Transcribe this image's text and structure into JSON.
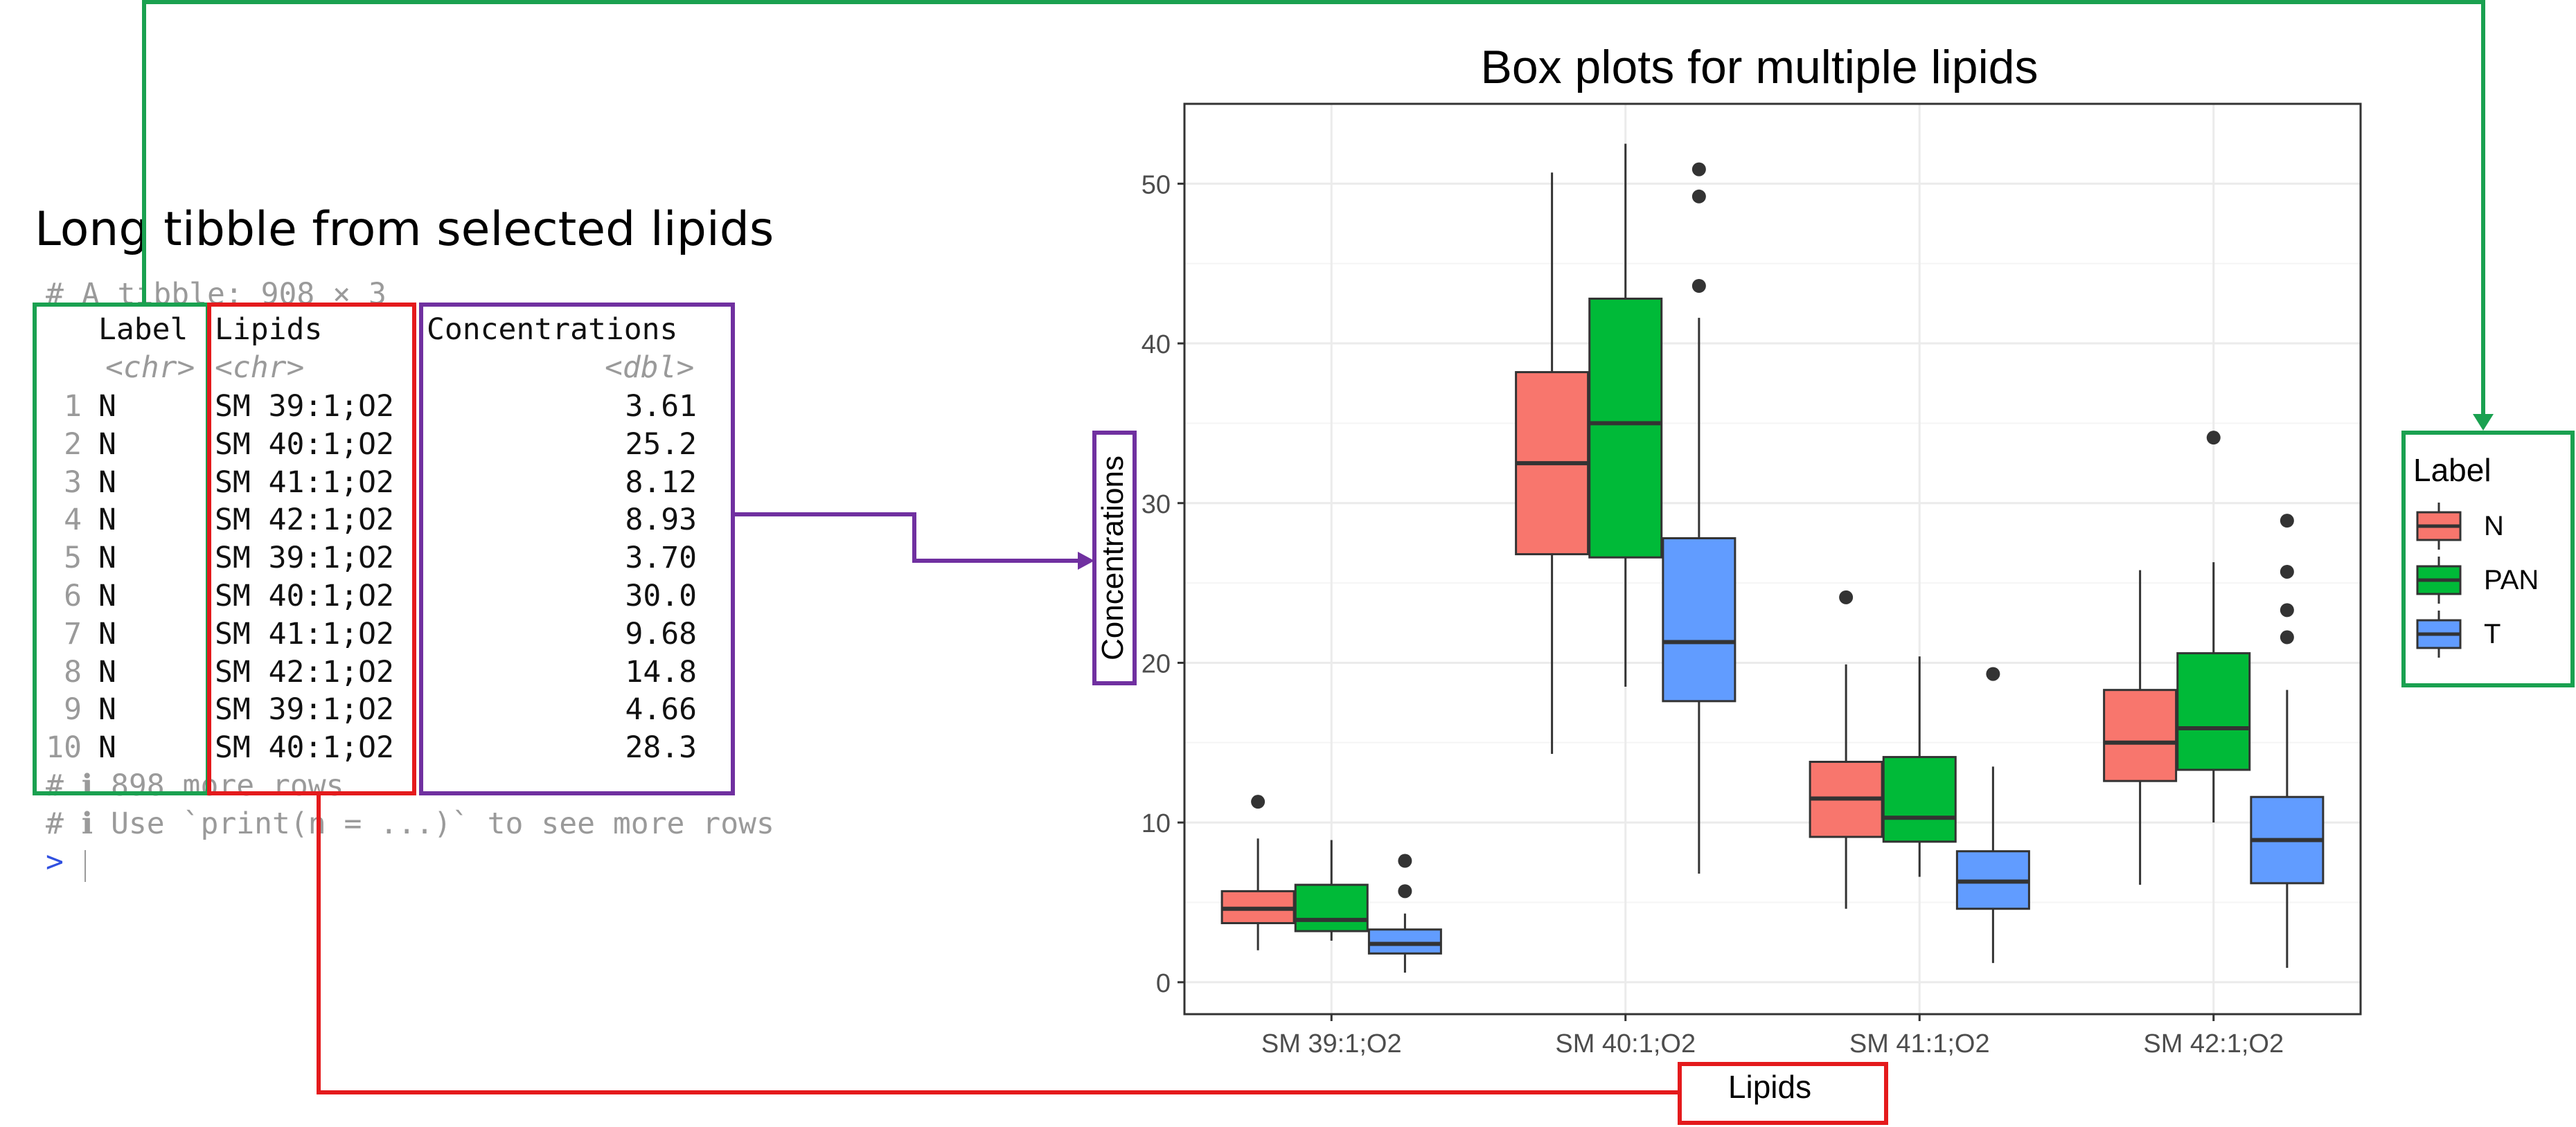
{
  "heading": "Long tibble from selected lipids",
  "console": {
    "header_comment": "# A tibble: 908 × 3",
    "columns": [
      "Label",
      "Lipids",
      "Concentrations"
    ],
    "types": [
      "<chr>",
      "<chr>",
      "<dbl>"
    ],
    "rows": [
      {
        "n": "1",
        "label": "N",
        "lipid": "SM 39:1;O2",
        "conc": "3.61"
      },
      {
        "n": "2",
        "label": "N",
        "lipid": "SM 40:1;O2",
        "conc": "25.2"
      },
      {
        "n": "3",
        "label": "N",
        "lipid": "SM 41:1;O2",
        "conc": "8.12"
      },
      {
        "n": "4",
        "label": "N",
        "lipid": "SM 42:1;O2",
        "conc": "8.93"
      },
      {
        "n": "5",
        "label": "N",
        "lipid": "SM 39:1;O2",
        "conc": "3.70"
      },
      {
        "n": "6",
        "label": "N",
        "lipid": "SM 40:1;O2",
        "conc": "30.0"
      },
      {
        "n": "7",
        "label": "N",
        "lipid": "SM 41:1;O2",
        "conc": "9.68"
      },
      {
        "n": "8",
        "label": "N",
        "lipid": "SM 42:1;O2",
        "conc": "14.8"
      },
      {
        "n": "9",
        "label": "N",
        "lipid": "SM 39:1;O2",
        "conc": "4.66"
      },
      {
        "n": "10",
        "label": "N",
        "lipid": "SM 40:1;O2",
        "conc": "28.3"
      }
    ],
    "footer_more_rows": "# ℹ 898 more rows",
    "footer_print_hint": "# ℹ Use `print(n = ...)` to see more rows",
    "prompt": ">"
  },
  "colors": {
    "N": "#F8766D",
    "PAN": "#00BA38",
    "T": "#619CFF",
    "label_highlight": "#1aa150",
    "lipids_highlight": "#e41a1c",
    "conc_highlight": "#7030a0"
  },
  "chart_data": {
    "type": "box",
    "title": "Box plots for multiple lipids",
    "xlabel": "Lipids",
    "ylabel": "Concentrations",
    "ylim": [
      -2,
      55
    ],
    "yticks": [
      0,
      10,
      20,
      30,
      40,
      50
    ],
    "grid": true,
    "legend": {
      "title": "Label",
      "placement": "right",
      "entries": [
        "N",
        "PAN",
        "T"
      ]
    },
    "categories": [
      "SM 39:1;O2",
      "SM 40:1;O2",
      "SM 41:1;O2",
      "SM 42:1;O2"
    ],
    "series": [
      {
        "name": "N",
        "boxes": [
          {
            "whisker_low": 2.0,
            "q1": 3.7,
            "median": 4.6,
            "q3": 5.7,
            "whisker_high": 9.0,
            "outliers": [
              11.3
            ]
          },
          {
            "whisker_low": 14.3,
            "q1": 26.8,
            "median": 32.5,
            "q3": 38.2,
            "whisker_high": 50.7,
            "outliers": []
          },
          {
            "whisker_low": 4.6,
            "q1": 9.1,
            "median": 11.5,
            "q3": 13.8,
            "whisker_high": 19.9,
            "outliers": [
              24.1
            ]
          },
          {
            "whisker_low": 6.1,
            "q1": 12.6,
            "median": 15.0,
            "q3": 18.3,
            "whisker_high": 25.8,
            "outliers": []
          }
        ]
      },
      {
        "name": "PAN",
        "boxes": [
          {
            "whisker_low": 2.6,
            "q1": 3.2,
            "median": 3.9,
            "q3": 6.1,
            "whisker_high": 8.9,
            "outliers": []
          },
          {
            "whisker_low": 18.5,
            "q1": 26.6,
            "median": 35.0,
            "q3": 42.8,
            "whisker_high": 52.5,
            "outliers": []
          },
          {
            "whisker_low": 6.6,
            "q1": 8.8,
            "median": 10.3,
            "q3": 14.1,
            "whisker_high": 20.4,
            "outliers": []
          },
          {
            "whisker_low": 10.0,
            "q1": 13.3,
            "median": 15.9,
            "q3": 20.6,
            "whisker_high": 26.3,
            "outliers": [
              34.1
            ]
          }
        ]
      },
      {
        "name": "T",
        "boxes": [
          {
            "whisker_low": 0.6,
            "q1": 1.8,
            "median": 2.4,
            "q3": 3.3,
            "whisker_high": 4.3,
            "outliers": [
              5.7,
              7.6
            ]
          },
          {
            "whisker_low": 6.8,
            "q1": 17.6,
            "median": 21.3,
            "q3": 27.8,
            "whisker_high": 41.6,
            "outliers": [
              43.6,
              49.2,
              50.9
            ]
          },
          {
            "whisker_low": 1.2,
            "q1": 4.6,
            "median": 6.3,
            "q3": 8.2,
            "whisker_high": 13.5,
            "outliers": [
              19.3
            ]
          },
          {
            "whisker_low": 0.9,
            "q1": 6.2,
            "median": 8.9,
            "q3": 11.6,
            "whisker_high": 18.3,
            "outliers": [
              21.6,
              23.3,
              25.7,
              28.9
            ]
          }
        ]
      }
    ]
  }
}
